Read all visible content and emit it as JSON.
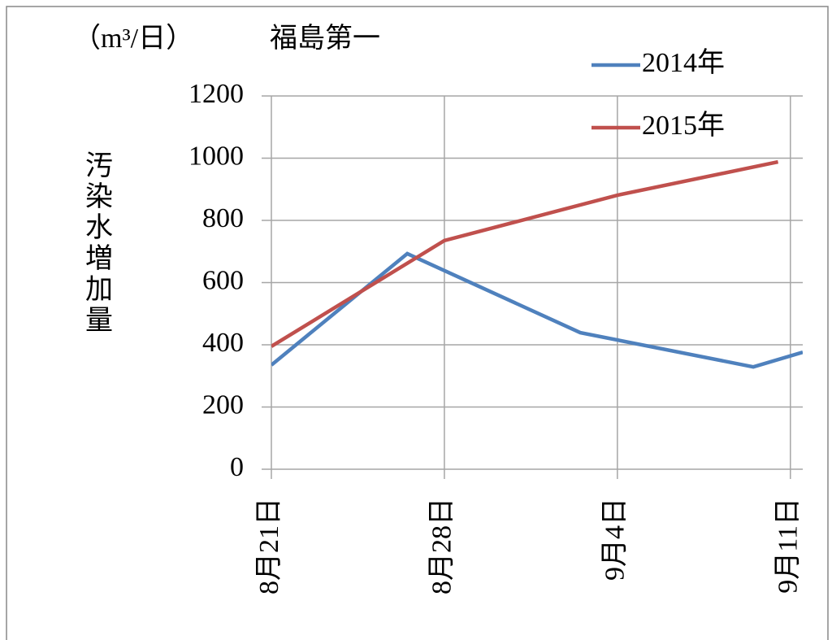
{
  "chart_data": {
    "type": "line",
    "title": "福島第一",
    "unit_label": "（m³/日）",
    "y_label": "汚染水増加量",
    "xlim": [
      0,
      21.5
    ],
    "xticks": [
      {
        "value": 0,
        "label": "8月21日"
      },
      {
        "value": 7,
        "label": "8月28日"
      },
      {
        "value": 14,
        "label": "9月4日"
      },
      {
        "value": 21,
        "label": "9月11日"
      }
    ],
    "ylim": [
      0,
      1200
    ],
    "yticks": [
      0,
      200,
      400,
      600,
      800,
      1000,
      1200
    ],
    "grid": true,
    "legend": "upper right",
    "series": [
      {
        "name": "2014年",
        "color": "#4f81bd",
        "x": [
          0,
          5.5,
          12.5,
          19.5,
          21.5
        ],
        "values": [
          335,
          693,
          439,
          329,
          376
        ]
      },
      {
        "name": "2015年",
        "color": "#c0504d",
        "x": [
          0,
          7,
          14,
          20.5
        ],
        "values": [
          395,
          735,
          881,
          988
        ]
      }
    ]
  }
}
